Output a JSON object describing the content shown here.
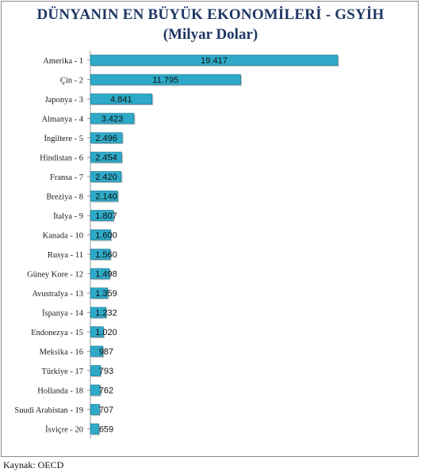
{
  "chart_data": {
    "type": "bar",
    "orientation": "horizontal",
    "title": "DÜNYANIN EN BÜYÜK EKONOMİLERİ - GSYİH",
    "subtitle": "(Milyar Dolar)",
    "categories": [
      "Amerika - 1",
      "Çin - 2",
      "Japonya - 3",
      "Almanya - 4",
      "İngiltere - 5",
      "Hindistan - 6",
      "Fransa - 7",
      "Breziya - 8",
      "İtalya - 9",
      "Kanada - 10",
      "Rusya - 11",
      "Güney Kore - 12",
      "Avustralya - 13",
      "İspanya - 14",
      "Endonezya - 15",
      "Meksika - 16",
      "Türkiye - 17",
      "Hollanda - 18",
      "Suudi Arabistan - 19",
      "İsviçre - 20"
    ],
    "values": [
      19417,
      11795,
      4841,
      3423,
      2496,
      2454,
      2420,
      2140,
      1807,
      1600,
      1560,
      1498,
      1359,
      1232,
      1020,
      987,
      793,
      762,
      707,
      659
    ],
    "value_labels": [
      "19.417",
      "11.795",
      "4.841",
      "3.423",
      "2.496",
      "2.454",
      "2.420",
      "2.140",
      "1.807",
      "1.600",
      "1.560",
      "1.498",
      "1.359",
      "1.232",
      "1.020",
      "987",
      "793",
      "762",
      "707",
      "659"
    ],
    "xlim": [
      0,
      19417
    ],
    "grid": false,
    "bar_color": "#2eaac8",
    "bar_border_color": "#1a6f86"
  },
  "source": "Kaynak: OECD"
}
